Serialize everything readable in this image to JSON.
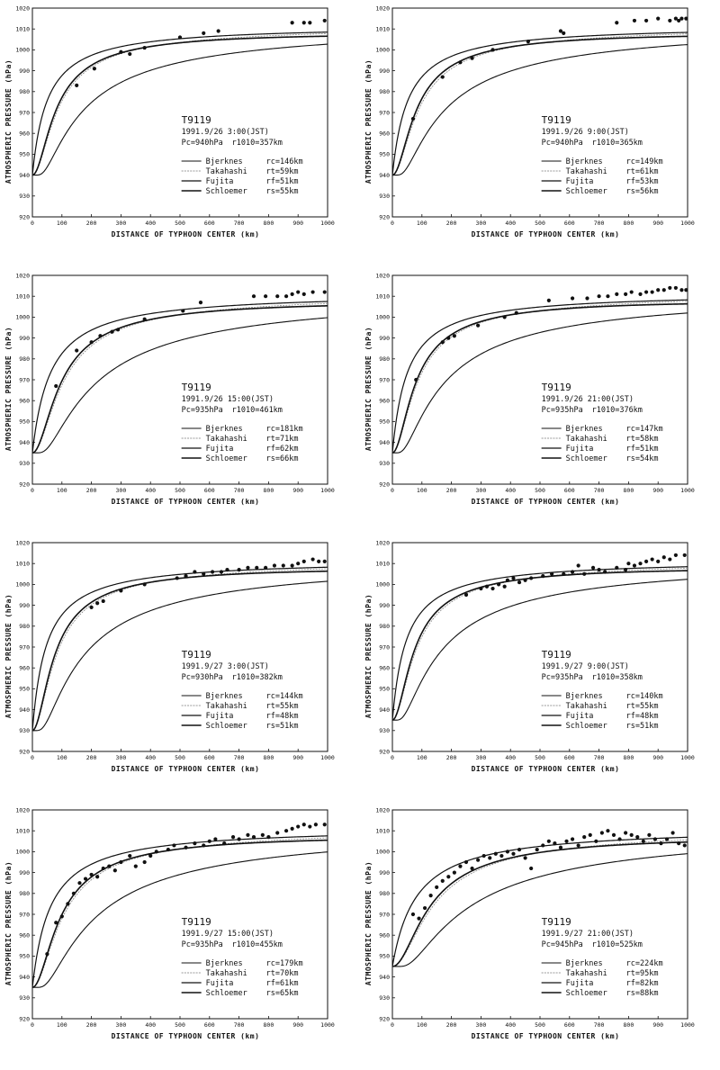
{
  "axes": {
    "ylabel": "ATMOSPHERIC PRESSURE",
    "yunit": "(hPa)",
    "xlabel": "DISTANCE OF TYPHOON CENTER",
    "xunit": "(km)",
    "xticks": [
      "0",
      "100",
      "200",
      "300",
      "400",
      "500",
      "600",
      "700",
      "800",
      "900",
      "1000"
    ],
    "yticks": [
      "920",
      "930",
      "940",
      "950",
      "960",
      "970",
      "980",
      "990",
      "1000",
      "1010",
      "1020"
    ]
  },
  "legend_names": [
    "Bjerknes",
    "Takahashi",
    "Fujita",
    "Schloemer"
  ],
  "chart_data": [
    {
      "type": "line",
      "title": "T9119",
      "date": "1991.9/26 3:00(JST)",
      "pc": "Pc=940hPa",
      "rlabel": "r1010=357km",
      "xlim": [
        0,
        1000
      ],
      "ylim": [
        920,
        1020
      ],
      "p0": 940,
      "pinf": 1012,
      "radii": [
        146,
        59,
        51,
        55
      ],
      "radii_text": [
        "rc=146km",
        "rt=59km",
        "rf=51km",
        "rs=55km"
      ],
      "obs": [
        [
          150,
          983
        ],
        [
          210,
          991
        ],
        [
          300,
          999
        ],
        [
          330,
          998
        ],
        [
          380,
          1001
        ],
        [
          500,
          1006
        ],
        [
          580,
          1008
        ],
        [
          630,
          1009
        ],
        [
          880,
          1013
        ],
        [
          920,
          1013
        ],
        [
          940,
          1013
        ],
        [
          990,
          1014
        ]
      ]
    },
    {
      "type": "line",
      "title": "T9119",
      "date": "1991.9/26 9:00(JST)",
      "pc": "Pc=940hPa",
      "rlabel": "r1010=365km",
      "xlim": [
        0,
        1000
      ],
      "ylim": [
        920,
        1020
      ],
      "p0": 940,
      "pinf": 1012,
      "radii": [
        149,
        61,
        53,
        56
      ],
      "radii_text": [
        "rc=149km",
        "rt=61km",
        "rf=53km",
        "rs=56km"
      ],
      "obs": [
        [
          70,
          967
        ],
        [
          170,
          987
        ],
        [
          230,
          994
        ],
        [
          270,
          996
        ],
        [
          340,
          1000
        ],
        [
          460,
          1004
        ],
        [
          570,
          1009
        ],
        [
          580,
          1008
        ],
        [
          760,
          1013
        ],
        [
          820,
          1014
        ],
        [
          860,
          1014
        ],
        [
          900,
          1015
        ],
        [
          940,
          1014
        ],
        [
          960,
          1015
        ],
        [
          970,
          1014
        ],
        [
          980,
          1015
        ],
        [
          995,
          1015
        ]
      ]
    },
    {
      "type": "line",
      "title": "T9119",
      "date": "1991.9/26 15:00(JST)",
      "pc": "Pc=935hPa",
      "rlabel": "r1010=461km",
      "xlim": [
        0,
        1000
      ],
      "ylim": [
        920,
        1020
      ],
      "p0": 935,
      "pinf": 1012,
      "radii": [
        181,
        71,
        62,
        66
      ],
      "radii_text": [
        "rc=181km",
        "rt=71km",
        "rf=62km",
        "rs=66km"
      ],
      "obs": [
        [
          80,
          967
        ],
        [
          150,
          984
        ],
        [
          200,
          988
        ],
        [
          230,
          991
        ],
        [
          270,
          993
        ],
        [
          290,
          994
        ],
        [
          380,
          999
        ],
        [
          510,
          1003
        ],
        [
          570,
          1007
        ],
        [
          750,
          1010
        ],
        [
          790,
          1010
        ],
        [
          830,
          1010
        ],
        [
          860,
          1010
        ],
        [
          880,
          1011
        ],
        [
          900,
          1012
        ],
        [
          920,
          1011
        ],
        [
          950,
          1012
        ],
        [
          990,
          1012
        ]
      ]
    },
    {
      "type": "line",
      "title": "T9119",
      "date": "1991.9/26 21:00(JST)",
      "pc": "Pc=935hPa",
      "rlabel": "r1010=376km",
      "xlim": [
        0,
        1000
      ],
      "ylim": [
        920,
        1020
      ],
      "p0": 935,
      "pinf": 1012,
      "radii": [
        147,
        58,
        51,
        54
      ],
      "radii_text": [
        "rc=147km",
        "rt=58km",
        "rf=51km",
        "rs=54km"
      ],
      "obs": [
        [
          80,
          970
        ],
        [
          170,
          988
        ],
        [
          190,
          990
        ],
        [
          210,
          991
        ],
        [
          290,
          996
        ],
        [
          380,
          1000
        ],
        [
          420,
          1002
        ],
        [
          530,
          1008
        ],
        [
          610,
          1009
        ],
        [
          660,
          1009
        ],
        [
          700,
          1010
        ],
        [
          730,
          1010
        ],
        [
          760,
          1011
        ],
        [
          790,
          1011
        ],
        [
          810,
          1012
        ],
        [
          840,
          1011
        ],
        [
          860,
          1012
        ],
        [
          880,
          1012
        ],
        [
          900,
          1013
        ],
        [
          920,
          1013
        ],
        [
          940,
          1014
        ],
        [
          960,
          1014
        ],
        [
          980,
          1013
        ],
        [
          995,
          1013
        ]
      ]
    },
    {
      "type": "line",
      "title": "T9119",
      "date": "1991.9/27 3:00(JST)",
      "pc": "Pc=930hPa",
      "rlabel": "r1010=382km",
      "xlim": [
        0,
        1000
      ],
      "ylim": [
        920,
        1020
      ],
      "p0": 930,
      "pinf": 1012,
      "radii": [
        144,
        55,
        48,
        51
      ],
      "radii_text": [
        "rc=144km",
        "rt=55km",
        "rf=48km",
        "rs=51km"
      ],
      "obs": [
        [
          200,
          989
        ],
        [
          220,
          991
        ],
        [
          240,
          992
        ],
        [
          300,
          997
        ],
        [
          380,
          1000
        ],
        [
          490,
          1003
        ],
        [
          520,
          1004
        ],
        [
          550,
          1006
        ],
        [
          580,
          1005
        ],
        [
          610,
          1006
        ],
        [
          640,
          1006
        ],
        [
          660,
          1007
        ],
        [
          700,
          1007
        ],
        [
          730,
          1008
        ],
        [
          760,
          1008
        ],
        [
          790,
          1008
        ],
        [
          820,
          1009
        ],
        [
          850,
          1009
        ],
        [
          880,
          1009
        ],
        [
          900,
          1010
        ],
        [
          920,
          1011
        ],
        [
          950,
          1012
        ],
        [
          970,
          1011
        ],
        [
          990,
          1011
        ]
      ]
    },
    {
      "type": "line",
      "title": "T9119",
      "date": "1991.9/27 9:00(JST)",
      "pc": "Pc=935hPa",
      "rlabel": "r1010=358km",
      "xlim": [
        0,
        1000
      ],
      "ylim": [
        920,
        1020
      ],
      "p0": 935,
      "pinf": 1012,
      "radii": [
        140,
        55,
        48,
        51
      ],
      "radii_text": [
        "rc=140km",
        "rt=55km",
        "rf=48km",
        "rs=51km"
      ],
      "obs": [
        [
          250,
          995
        ],
        [
          300,
          998
        ],
        [
          320,
          999
        ],
        [
          340,
          998
        ],
        [
          360,
          1000
        ],
        [
          380,
          999
        ],
        [
          390,
          1002
        ],
        [
          410,
          1003
        ],
        [
          430,
          1001
        ],
        [
          450,
          1002
        ],
        [
          470,
          1003
        ],
        [
          510,
          1004
        ],
        [
          540,
          1005
        ],
        [
          580,
          1005
        ],
        [
          610,
          1006
        ],
        [
          630,
          1009
        ],
        [
          650,
          1005
        ],
        [
          680,
          1008
        ],
        [
          700,
          1007
        ],
        [
          720,
          1006
        ],
        [
          760,
          1008
        ],
        [
          790,
          1007
        ],
        [
          800,
          1010
        ],
        [
          820,
          1009
        ],
        [
          840,
          1010
        ],
        [
          860,
          1011
        ],
        [
          880,
          1012
        ],
        [
          900,
          1011
        ],
        [
          920,
          1013
        ],
        [
          940,
          1012
        ],
        [
          960,
          1014
        ],
        [
          990,
          1014
        ]
      ]
    },
    {
      "type": "line",
      "title": "T9119",
      "date": "1991.9/27 15:00(JST)",
      "pc": "Pc=935hPa",
      "rlabel": "r1010=455km",
      "xlim": [
        0,
        1000
      ],
      "ylim": [
        920,
        1020
      ],
      "p0": 935,
      "pinf": 1012,
      "radii": [
        179,
        70,
        61,
        65
      ],
      "radii_text": [
        "rc=179km",
        "rt=70km",
        "rf=61km",
        "rs=65km"
      ],
      "obs": [
        [
          50,
          951
        ],
        [
          80,
          966
        ],
        [
          100,
          969
        ],
        [
          120,
          975
        ],
        [
          140,
          980
        ],
        [
          160,
          985
        ],
        [
          180,
          987
        ],
        [
          200,
          989
        ],
        [
          220,
          988
        ],
        [
          240,
          992
        ],
        [
          260,
          993
        ],
        [
          280,
          991
        ],
        [
          300,
          995
        ],
        [
          330,
          998
        ],
        [
          350,
          993
        ],
        [
          380,
          995
        ],
        [
          400,
          998
        ],
        [
          420,
          1000
        ],
        [
          460,
          1001
        ],
        [
          480,
          1003
        ],
        [
          520,
          1002
        ],
        [
          550,
          1004
        ],
        [
          580,
          1003
        ],
        [
          600,
          1005
        ],
        [
          620,
          1006
        ],
        [
          650,
          1004
        ],
        [
          680,
          1007
        ],
        [
          700,
          1006
        ],
        [
          730,
          1008
        ],
        [
          750,
          1007
        ],
        [
          780,
          1008
        ],
        [
          800,
          1007
        ],
        [
          830,
          1009
        ],
        [
          860,
          1010
        ],
        [
          880,
          1011
        ],
        [
          900,
          1012
        ],
        [
          920,
          1013
        ],
        [
          940,
          1012
        ],
        [
          960,
          1013
        ],
        [
          990,
          1013
        ]
      ]
    },
    {
      "type": "line",
      "title": "T9119",
      "date": "1991.9/27 21:00(JST)",
      "pc": "Pc=945hPa",
      "rlabel": "r1010=525km",
      "xlim": [
        0,
        1000
      ],
      "ylim": [
        920,
        1020
      ],
      "p0": 945,
      "pinf": 1012,
      "radii": [
        224,
        95,
        82,
        88
      ],
      "radii_text": [
        "rc=224km",
        "rt=95km",
        "rf=82km",
        "rs=88km"
      ],
      "obs": [
        [
          70,
          970
        ],
        [
          90,
          968
        ],
        [
          110,
          973
        ],
        [
          130,
          979
        ],
        [
          150,
          983
        ],
        [
          170,
          986
        ],
        [
          190,
          988
        ],
        [
          210,
          990
        ],
        [
          230,
          993
        ],
        [
          250,
          995
        ],
        [
          270,
          992
        ],
        [
          290,
          996
        ],
        [
          310,
          998
        ],
        [
          330,
          997
        ],
        [
          350,
          999
        ],
        [
          370,
          998
        ],
        [
          390,
          1000
        ],
        [
          410,
          999
        ],
        [
          430,
          1001
        ],
        [
          450,
          997
        ],
        [
          470,
          992
        ],
        [
          490,
          1001
        ],
        [
          510,
          1003
        ],
        [
          530,
          1005
        ],
        [
          550,
          1004
        ],
        [
          570,
          1002
        ],
        [
          590,
          1005
        ],
        [
          610,
          1006
        ],
        [
          630,
          1003
        ],
        [
          650,
          1007
        ],
        [
          670,
          1008
        ],
        [
          690,
          1005
        ],
        [
          710,
          1009
        ],
        [
          730,
          1010
        ],
        [
          750,
          1008
        ],
        [
          770,
          1006
        ],
        [
          790,
          1009
        ],
        [
          810,
          1008
        ],
        [
          830,
          1007
        ],
        [
          850,
          1005
        ],
        [
          870,
          1008
        ],
        [
          890,
          1006
        ],
        [
          910,
          1004
        ],
        [
          930,
          1006
        ],
        [
          950,
          1009
        ],
        [
          970,
          1004
        ],
        [
          990,
          1003
        ]
      ]
    }
  ]
}
